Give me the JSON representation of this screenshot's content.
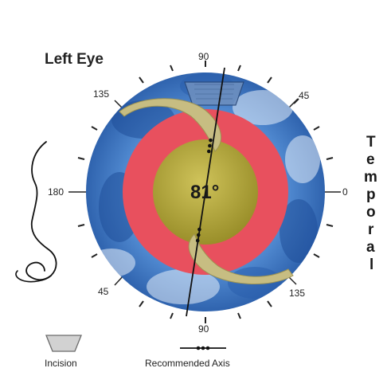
{
  "title": "Left Eye",
  "degree_labels": {
    "top_90": "90",
    "top_left_135": "135",
    "top_right_45": "45",
    "left_180": "180",
    "right_0": "0",
    "bottom_left_45": "45",
    "bottom_right_135": "135",
    "bottom_90": "90"
  },
  "axis_value": "81°",
  "side_label": "Temporal",
  "side_label_letters": [
    "T",
    "e",
    "m",
    "p",
    "o",
    "r",
    "a",
    "l"
  ],
  "legend": {
    "incision_label": "Incision",
    "axis_label": "Recommended Axis"
  },
  "colors": {
    "cornea_blue": "#3d78c2",
    "ring_red": "#e8505e",
    "lens_olive": "#b0a332",
    "haptic_gold": "#c7bd82",
    "incision_grey": "#c8c8c8"
  },
  "icons": {
    "nose": "nose-profile-icon",
    "incision": "incision-trapezoid-icon",
    "axis": "recommended-axis-icon"
  }
}
